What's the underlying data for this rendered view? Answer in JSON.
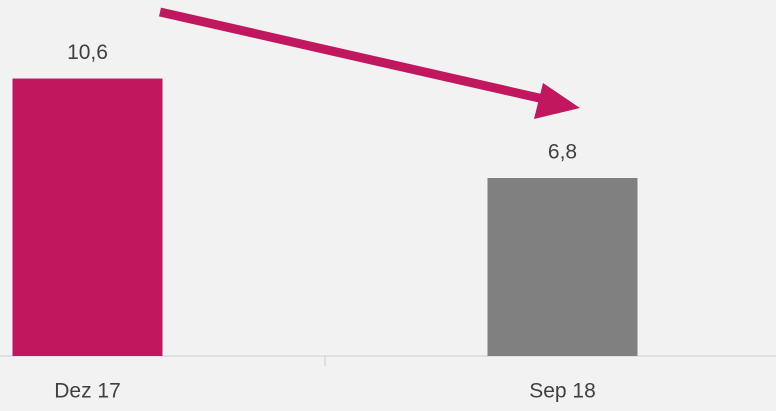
{
  "chart_data": {
    "type": "bar",
    "categories": [
      "Dez 17",
      "Sep 18"
    ],
    "values": [
      10.6,
      6.8
    ],
    "value_labels": [
      "10,6",
      "6,8"
    ],
    "colors": [
      "#c0175f",
      "#808080"
    ],
    "ylim": [
      0,
      13.6
    ]
  }
}
